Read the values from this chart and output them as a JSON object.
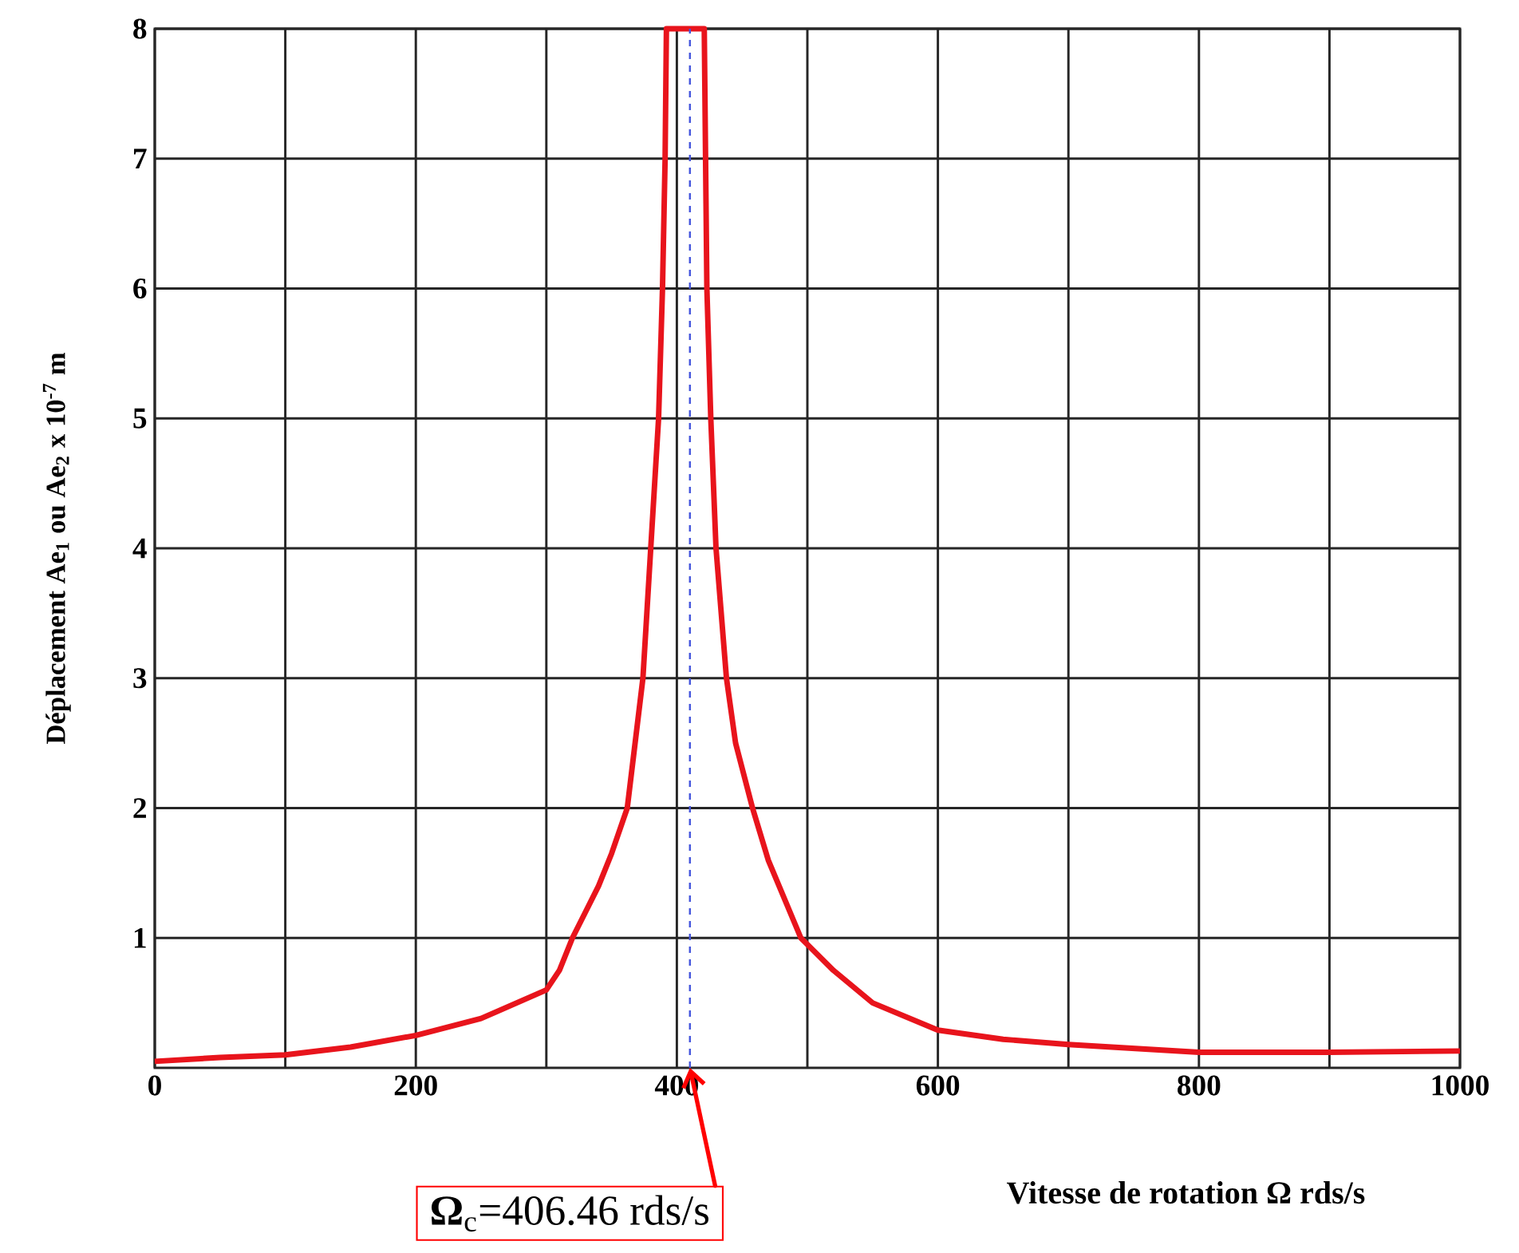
{
  "chart_data": {
    "type": "line",
    "xlabel": "Vitesse de rotation Ω  rds/s",
    "ylabel": "Déplacement Ae$_{1}$ ou Ae$_{2}$  x 10$^{-7}$ m",
    "x": [
      0,
      50,
      100,
      150,
      200,
      250,
      300,
      310,
      320,
      330,
      340,
      350,
      362,
      368,
      374,
      380,
      386,
      389,
      391,
      392,
      421,
      422,
      423,
      426,
      430,
      438,
      445,
      458,
      470,
      495,
      520,
      550,
      600,
      650,
      700,
      800,
      900,
      1000
    ],
    "series": [
      {
        "color": "#e8141c",
        "values": [
          0.05,
          0.08,
          0.1,
          0.16,
          0.25,
          0.38,
          0.6,
          0.75,
          1,
          1.2,
          1.4,
          1.65,
          2,
          2.5,
          3,
          4,
          5,
          6,
          7,
          8,
          8,
          7,
          6,
          5,
          4,
          3,
          2.5,
          2,
          1.6,
          1,
          0.75,
          0.5,
          0.29,
          0.22,
          0.18,
          0.12,
          0.12,
          0.13
        ]
      }
    ],
    "xlim": [
      0,
      1000
    ],
    "ylim": [
      0,
      8
    ],
    "xticks": [
      0,
      {
        "value": 100,
        "label": null
      },
      200,
      {
        "value": 300,
        "label": null
      },
      400,
      {
        "value": 500,
        "label": null
      },
      600,
      {
        "value": 700,
        "label": null
      },
      800,
      {
        "value": 900,
        "label": null
      },
      1000
    ],
    "yticks": [
      1,
      2,
      3,
      4,
      5,
      6,
      7,
      8
    ],
    "grid": true,
    "marker": "none",
    "line_style": "solid",
    "ref_lines": [
      {
        "axis": "x",
        "value": 410,
        "color": "#4455dd",
        "line_style": "dashed"
      }
    ],
    "annotations": [
      {
        "text": "**Ω**$_{c}$=406.46 rds/s",
        "x": 410,
        "y": 0
      }
    ]
  }
}
